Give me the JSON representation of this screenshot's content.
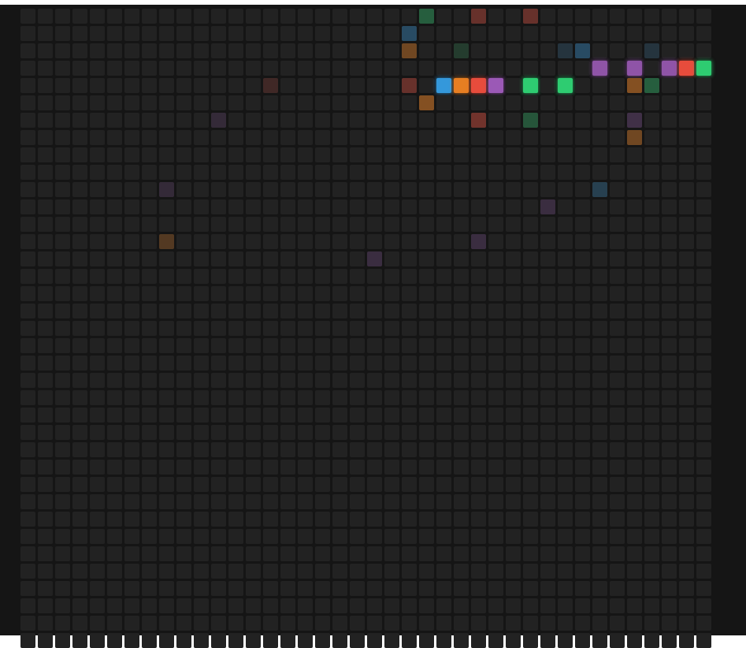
{
  "grid": {
    "columns": 40,
    "rows": 37,
    "empty_color": "#222222",
    "background_color": "#151515"
  },
  "palette": {
    "blue": "#3498db",
    "orange": "#e67e22",
    "red": "#e74c3c",
    "purple": "#9b59b6",
    "green": "#2ecc71"
  },
  "cells": [
    {
      "col": 23,
      "row": 0,
      "color": "green",
      "opacity": 0.35
    },
    {
      "col": 26,
      "row": 0,
      "color": "red",
      "opacity": 0.35
    },
    {
      "col": 29,
      "row": 0,
      "color": "red",
      "opacity": 0.35
    },
    {
      "col": 22,
      "row": 1,
      "color": "blue",
      "opacity": 0.35
    },
    {
      "col": 22,
      "row": 2,
      "color": "orange",
      "opacity": 0.4
    },
    {
      "col": 25,
      "row": 2,
      "color": "green",
      "opacity": 0.15
    },
    {
      "col": 31,
      "row": 2,
      "color": "blue",
      "opacity": 0.15
    },
    {
      "col": 32,
      "row": 2,
      "color": "blue",
      "opacity": 0.35
    },
    {
      "col": 36,
      "row": 2,
      "color": "blue",
      "opacity": 0.15
    },
    {
      "col": 33,
      "row": 3,
      "color": "purple",
      "opacity": 0.9
    },
    {
      "col": 35,
      "row": 3,
      "color": "purple",
      "opacity": 0.9
    },
    {
      "col": 37,
      "row": 3,
      "color": "purple",
      "opacity": 0.9
    },
    {
      "col": 38,
      "row": 3,
      "color": "red",
      "opacity": 1.0
    },
    {
      "col": 39,
      "row": 3,
      "color": "green",
      "opacity": 1.0
    },
    {
      "col": 14,
      "row": 4,
      "color": "red",
      "opacity": 0.15
    },
    {
      "col": 22,
      "row": 4,
      "color": "red",
      "opacity": 0.35
    },
    {
      "col": 24,
      "row": 4,
      "color": "blue",
      "opacity": 1.0
    },
    {
      "col": 25,
      "row": 4,
      "color": "orange",
      "opacity": 1.0
    },
    {
      "col": 26,
      "row": 4,
      "color": "red",
      "opacity": 1.0
    },
    {
      "col": 27,
      "row": 4,
      "color": "purple",
      "opacity": 1.0
    },
    {
      "col": 29,
      "row": 4,
      "color": "green",
      "opacity": 1.0
    },
    {
      "col": 31,
      "row": 4,
      "color": "green",
      "opacity": 1.0
    },
    {
      "col": 35,
      "row": 4,
      "color": "orange",
      "opacity": 0.5
    },
    {
      "col": 36,
      "row": 4,
      "color": "green",
      "opacity": 0.35
    },
    {
      "col": 23,
      "row": 5,
      "color": "orange",
      "opacity": 0.5
    },
    {
      "col": 11,
      "row": 6,
      "color": "purple",
      "opacity": 0.15
    },
    {
      "col": 26,
      "row": 6,
      "color": "red",
      "opacity": 0.4
    },
    {
      "col": 29,
      "row": 6,
      "color": "green",
      "opacity": 0.3
    },
    {
      "col": 35,
      "row": 6,
      "color": "purple",
      "opacity": 0.25
    },
    {
      "col": 35,
      "row": 7,
      "color": "orange",
      "opacity": 0.4
    },
    {
      "col": 8,
      "row": 10,
      "color": "purple",
      "opacity": 0.15
    },
    {
      "col": 33,
      "row": 10,
      "color": "blue",
      "opacity": 0.25
    },
    {
      "col": 30,
      "row": 11,
      "color": "purple",
      "opacity": 0.2
    },
    {
      "col": 8,
      "row": 13,
      "color": "orange",
      "opacity": 0.25
    },
    {
      "col": 26,
      "row": 13,
      "color": "purple",
      "opacity": 0.2
    },
    {
      "col": 20,
      "row": 14,
      "color": "purple",
      "opacity": 0.2
    }
  ]
}
